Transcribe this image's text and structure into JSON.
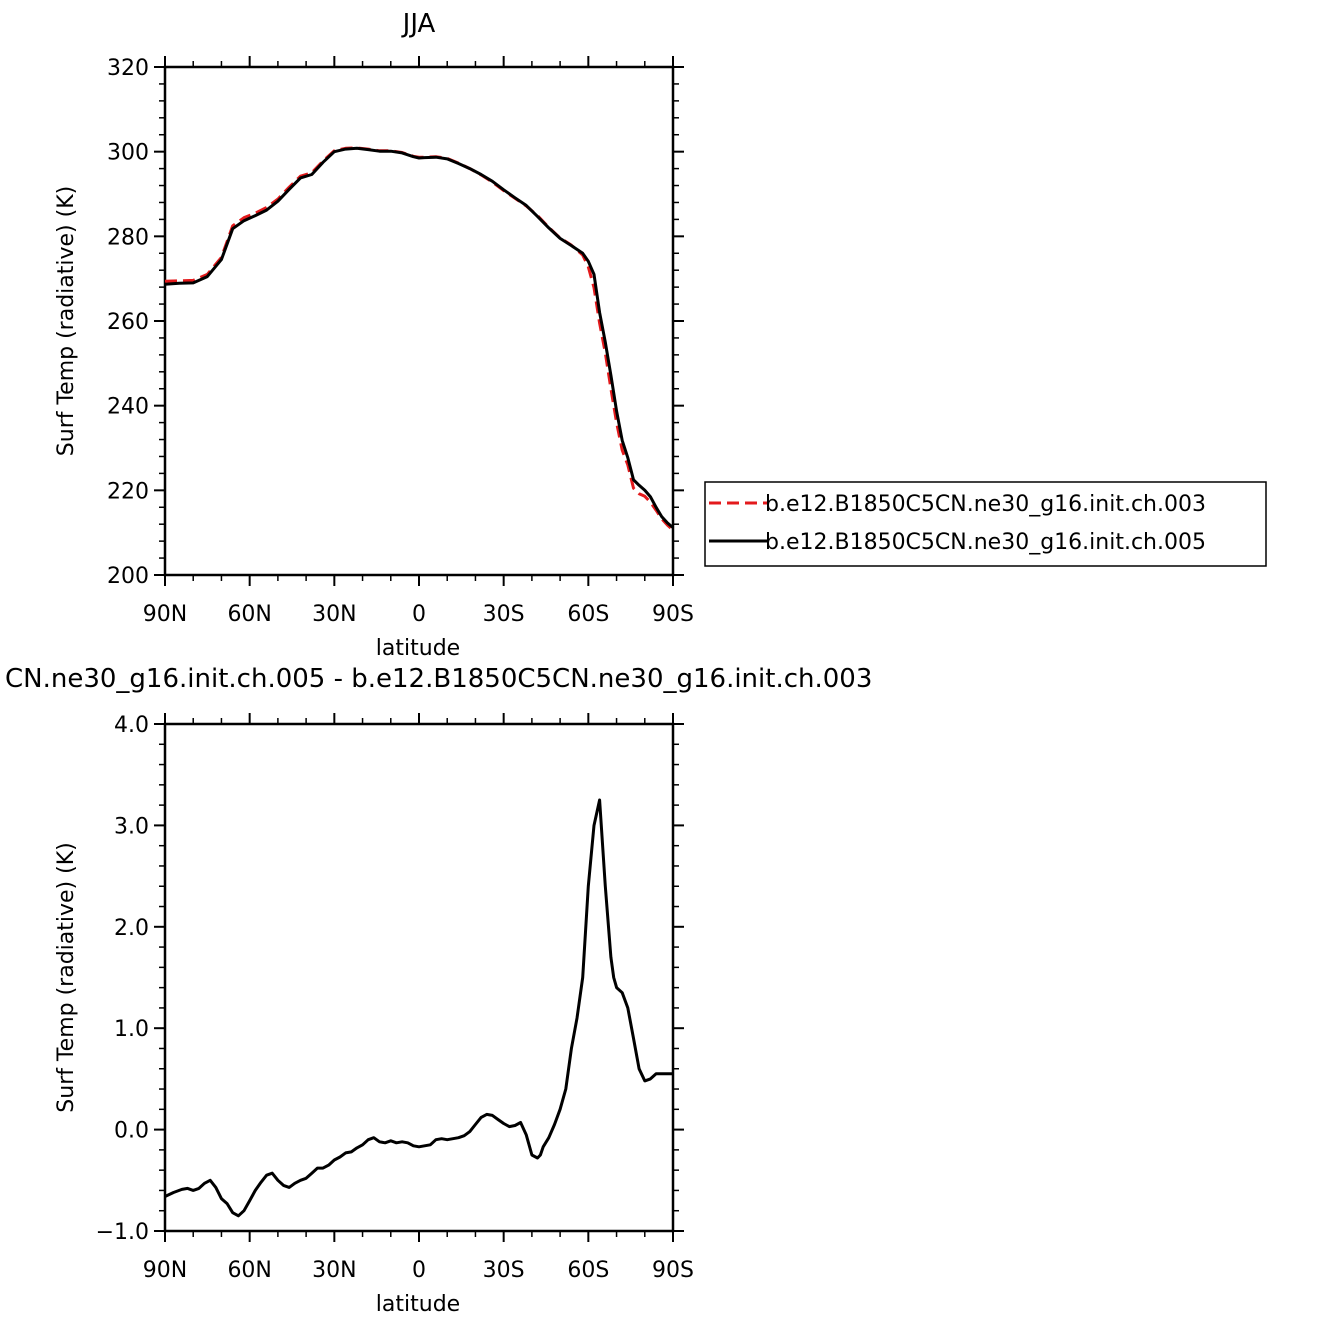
{
  "colors": {
    "background": "#ffffff",
    "axis": "#000000",
    "series_a": "#e31a1c",
    "series_b": "#000000"
  },
  "chart_data": [
    {
      "type": "line",
      "title": "JJA",
      "xlabel": "latitude",
      "ylabel": "Surf Temp (radiative) (K)",
      "xlim": [
        90,
        -90
      ],
      "ylim": [
        200,
        320
      ],
      "x_ticks": [
        {
          "value": 90,
          "label": "90N"
        },
        {
          "value": 60,
          "label": "60N"
        },
        {
          "value": 30,
          "label": "30N"
        },
        {
          "value": 0,
          "label": "0"
        },
        {
          "value": -30,
          "label": "30S"
        },
        {
          "value": -60,
          "label": "60S"
        },
        {
          "value": -90,
          "label": "90S"
        }
      ],
      "y_ticks": [
        {
          "value": 200,
          "label": "200"
        },
        {
          "value": 220,
          "label": "220"
        },
        {
          "value": 240,
          "label": "240"
        },
        {
          "value": 260,
          "label": "260"
        },
        {
          "value": 280,
          "label": "280"
        },
        {
          "value": 300,
          "label": "300"
        },
        {
          "value": 320,
          "label": "320"
        }
      ],
      "grid": false,
      "legend_position": "right",
      "series": [
        {
          "name": "b.e12.B1850C5CN.ne30_g16.init.ch.003",
          "style": "dashed",
          "color": "#e31a1c",
          "x": [
            90,
            85,
            80,
            75,
            70,
            66,
            62,
            58,
            54,
            50,
            46,
            42,
            38,
            34,
            30,
            26,
            22,
            18,
            14,
            10,
            6,
            2,
            0,
            -2,
            -6,
            -10,
            -14,
            -18,
            -22,
            -26,
            -30,
            -34,
            -38,
            -42,
            -46,
            -50,
            -54,
            -58,
            -60,
            -62,
            -64,
            -66,
            -68,
            -70,
            -72,
            -74,
            -76,
            -78,
            -80,
            -82,
            -84,
            -86,
            -88,
            -90
          ],
          "y": [
            269.4,
            269.5,
            269.6,
            271.0,
            275.0,
            282.5,
            284.4,
            285.5,
            286.8,
            288.8,
            291.6,
            294.2,
            295.0,
            297.8,
            300.2,
            300.8,
            300.9,
            300.6,
            300.2,
            300.2,
            299.8,
            298.9,
            298.7,
            298.7,
            298.8,
            298.4,
            297.3,
            296.0,
            294.5,
            292.8,
            290.8,
            289.0,
            287.2,
            284.9,
            282.1,
            279.6,
            277.9,
            275.6,
            272.8,
            267.9,
            259.5,
            252.5,
            244.0,
            236.0,
            229.5,
            226.0,
            220.5,
            219.2,
            218.6,
            217.2,
            215.3,
            213.3,
            211.8,
            210.6
          ]
        },
        {
          "name": "b.e12.B1850C5CN.ne30_g16.init.ch.005",
          "style": "solid",
          "color": "#000000",
          "x": [
            90,
            85,
            80,
            75,
            70,
            66,
            62,
            58,
            54,
            50,
            46,
            42,
            38,
            34,
            30,
            26,
            22,
            18,
            14,
            10,
            6,
            2,
            0,
            -2,
            -6,
            -10,
            -14,
            -18,
            -22,
            -26,
            -30,
            -34,
            -38,
            -42,
            -46,
            -50,
            -54,
            -58,
            -60,
            -62,
            -64,
            -66,
            -68,
            -70,
            -72,
            -74,
            -76,
            -78,
            -80,
            -82,
            -84,
            -86,
            -88,
            -90
          ],
          "y": [
            268.7,
            268.9,
            269.0,
            270.5,
            274.5,
            281.8,
            283.7,
            284.9,
            286.2,
            288.3,
            291.1,
            293.8,
            294.6,
            297.5,
            300.0,
            300.6,
            300.8,
            300.5,
            300.1,
            300.1,
            299.7,
            298.8,
            298.5,
            298.6,
            298.7,
            298.3,
            297.2,
            296.0,
            294.6,
            293.0,
            291.0,
            289.1,
            287.3,
            284.7,
            282.0,
            279.5,
            277.8,
            276.0,
            274.1,
            271.0,
            262.0,
            255.0,
            247.2,
            238.7,
            231.8,
            227.7,
            222.5,
            221.2,
            220.0,
            218.5,
            216.0,
            213.8,
            212.3,
            211.2
          ]
        }
      ]
    },
    {
      "type": "line",
      "title": "CN.ne30_g16.init.ch.005 - b.e12.B1850C5CN.ne30_g16.init.ch.003",
      "xlabel": "latitude",
      "ylabel": "Surf Temp (radiative) (K)",
      "xlim": [
        90,
        -90
      ],
      "ylim": [
        -1.0,
        4.0
      ],
      "x_ticks": [
        {
          "value": 90,
          "label": "90N"
        },
        {
          "value": 60,
          "label": "60N"
        },
        {
          "value": 30,
          "label": "30N"
        },
        {
          "value": 0,
          "label": "0"
        },
        {
          "value": -30,
          "label": "30S"
        },
        {
          "value": -60,
          "label": "60S"
        },
        {
          "value": -90,
          "label": "90S"
        }
      ],
      "y_ticks": [
        {
          "value": -1.0,
          "label": "−1.0"
        },
        {
          "value": 0.0,
          "label": "0.0"
        },
        {
          "value": 1.0,
          "label": "1.0"
        },
        {
          "value": 2.0,
          "label": "2.0"
        },
        {
          "value": 3.0,
          "label": "3.0"
        },
        {
          "value": 4.0,
          "label": "4.0"
        }
      ],
      "grid": false,
      "series": [
        {
          "style": "solid",
          "color": "#000000",
          "x": [
            90,
            87,
            84,
            82,
            80,
            78,
            76,
            74,
            72,
            70,
            68,
            66,
            64,
            62,
            60,
            58,
            56,
            54,
            52,
            50,
            48,
            46,
            44,
            42,
            40,
            38,
            36,
            34,
            32,
            30,
            28,
            26,
            24,
            22,
            20,
            18,
            16,
            14,
            12,
            10,
            8,
            6,
            4,
            2,
            0,
            -2,
            -4,
            -6,
            -8,
            -10,
            -12,
            -14,
            -16,
            -18,
            -20,
            -22,
            -24,
            -26,
            -28,
            -30,
            -32,
            -34,
            -36,
            -38,
            -40,
            -42,
            -43,
            -44,
            -46,
            -48,
            -50,
            -52,
            -54,
            -56,
            -58,
            -60,
            -62,
            -64,
            -66,
            -68,
            -69,
            -70,
            -72,
            -74,
            -76,
            -78,
            -80,
            -82,
            -84,
            -86,
            -88,
            -90
          ],
          "y": [
            -0.66,
            -0.62,
            -0.59,
            -0.58,
            -0.6,
            -0.58,
            -0.53,
            -0.5,
            -0.57,
            -0.68,
            -0.73,
            -0.82,
            -0.85,
            -0.8,
            -0.7,
            -0.6,
            -0.52,
            -0.45,
            -0.43,
            -0.5,
            -0.55,
            -0.57,
            -0.53,
            -0.5,
            -0.48,
            -0.43,
            -0.38,
            -0.38,
            -0.35,
            -0.3,
            -0.27,
            -0.23,
            -0.22,
            -0.18,
            -0.15,
            -0.1,
            -0.08,
            -0.12,
            -0.13,
            -0.11,
            -0.13,
            -0.12,
            -0.13,
            -0.16,
            -0.17,
            -0.16,
            -0.15,
            -0.1,
            -0.09,
            -0.1,
            -0.09,
            -0.08,
            -0.06,
            -0.02,
            0.05,
            0.12,
            0.15,
            0.14,
            0.1,
            0.06,
            0.03,
            0.04,
            0.07,
            -0.05,
            -0.25,
            -0.28,
            -0.25,
            -0.17,
            -0.08,
            0.05,
            0.2,
            0.4,
            0.8,
            1.1,
            1.5,
            2.4,
            3.0,
            3.25,
            2.4,
            1.7,
            1.5,
            1.4,
            1.35,
            1.2,
            0.9,
            0.6,
            0.48,
            0.5,
            0.55,
            0.55,
            0.55,
            0.55
          ]
        }
      ]
    }
  ]
}
